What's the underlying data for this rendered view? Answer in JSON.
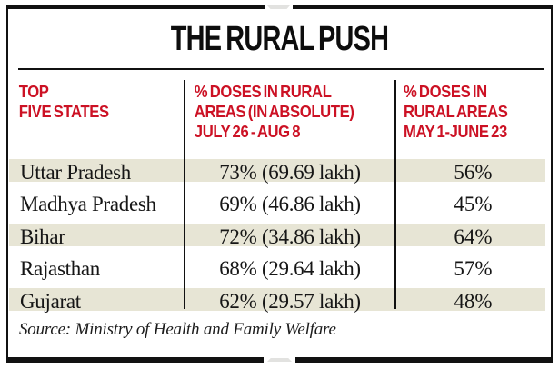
{
  "title": "THE RURAL PUSH",
  "header": {
    "col1": {
      "line1": "TOP",
      "line2": "FIVE STATES"
    },
    "col2": {
      "line1": "% DOSES IN RURAL",
      "line2": "AREAS (IN ABSOLUTE)",
      "line3": "JULY 26 - AUG 8"
    },
    "col3": {
      "line1": "% DOSES IN",
      "line2": "RURAL AREAS",
      "line3": "MAY 1-JUNE 23"
    }
  },
  "rows": [
    {
      "state": "Uttar Pradesh",
      "doses_jul26_aug8": "73% (69.69 lakh)",
      "doses_may1_jun23": "56%"
    },
    {
      "state": "Madhya Pradesh",
      "doses_jul26_aug8": "69% (46.86 lakh)",
      "doses_may1_jun23": "45%"
    },
    {
      "state": "Bihar",
      "doses_jul26_aug8": "72% (34.86 lakh)",
      "doses_may1_jun23": "64%"
    },
    {
      "state": "Rajasthan",
      "doses_jul26_aug8": "68% (29.64 lakh)",
      "doses_may1_jun23": "57%"
    },
    {
      "state": "Gujarat",
      "doses_jul26_aug8": "62% (29.57 lakh)",
      "doses_may1_jun23": "48%"
    }
  ],
  "source": "Source: Ministry of Health and Family Welfare",
  "colors": {
    "accent_red": "#cc1124",
    "row_shade": "#e7e5d5",
    "frame_black": "#111111"
  },
  "chart_data": {
    "type": "table",
    "title": "THE RURAL PUSH",
    "columns": [
      "Top five states",
      "% doses in rural areas (in absolute) July 26 - Aug 8",
      "% doses in rural areas May 1-June 23"
    ],
    "categories": [
      "Uttar Pradesh",
      "Madhya Pradesh",
      "Bihar",
      "Rajasthan",
      "Gujarat"
    ],
    "series": [
      {
        "name": "% doses in rural areas, July 26 - Aug 8",
        "values": [
          73,
          69,
          72,
          68,
          62
        ]
      },
      {
        "name": "Absolute doses (lakh), July 26 - Aug 8",
        "values": [
          69.69,
          46.86,
          34.86,
          29.64,
          29.57
        ]
      },
      {
        "name": "% doses in rural areas, May 1 - June 23",
        "values": [
          56,
          45,
          64,
          57,
          48
        ]
      }
    ],
    "source": "Source: Ministry of Health and Family Welfare"
  }
}
